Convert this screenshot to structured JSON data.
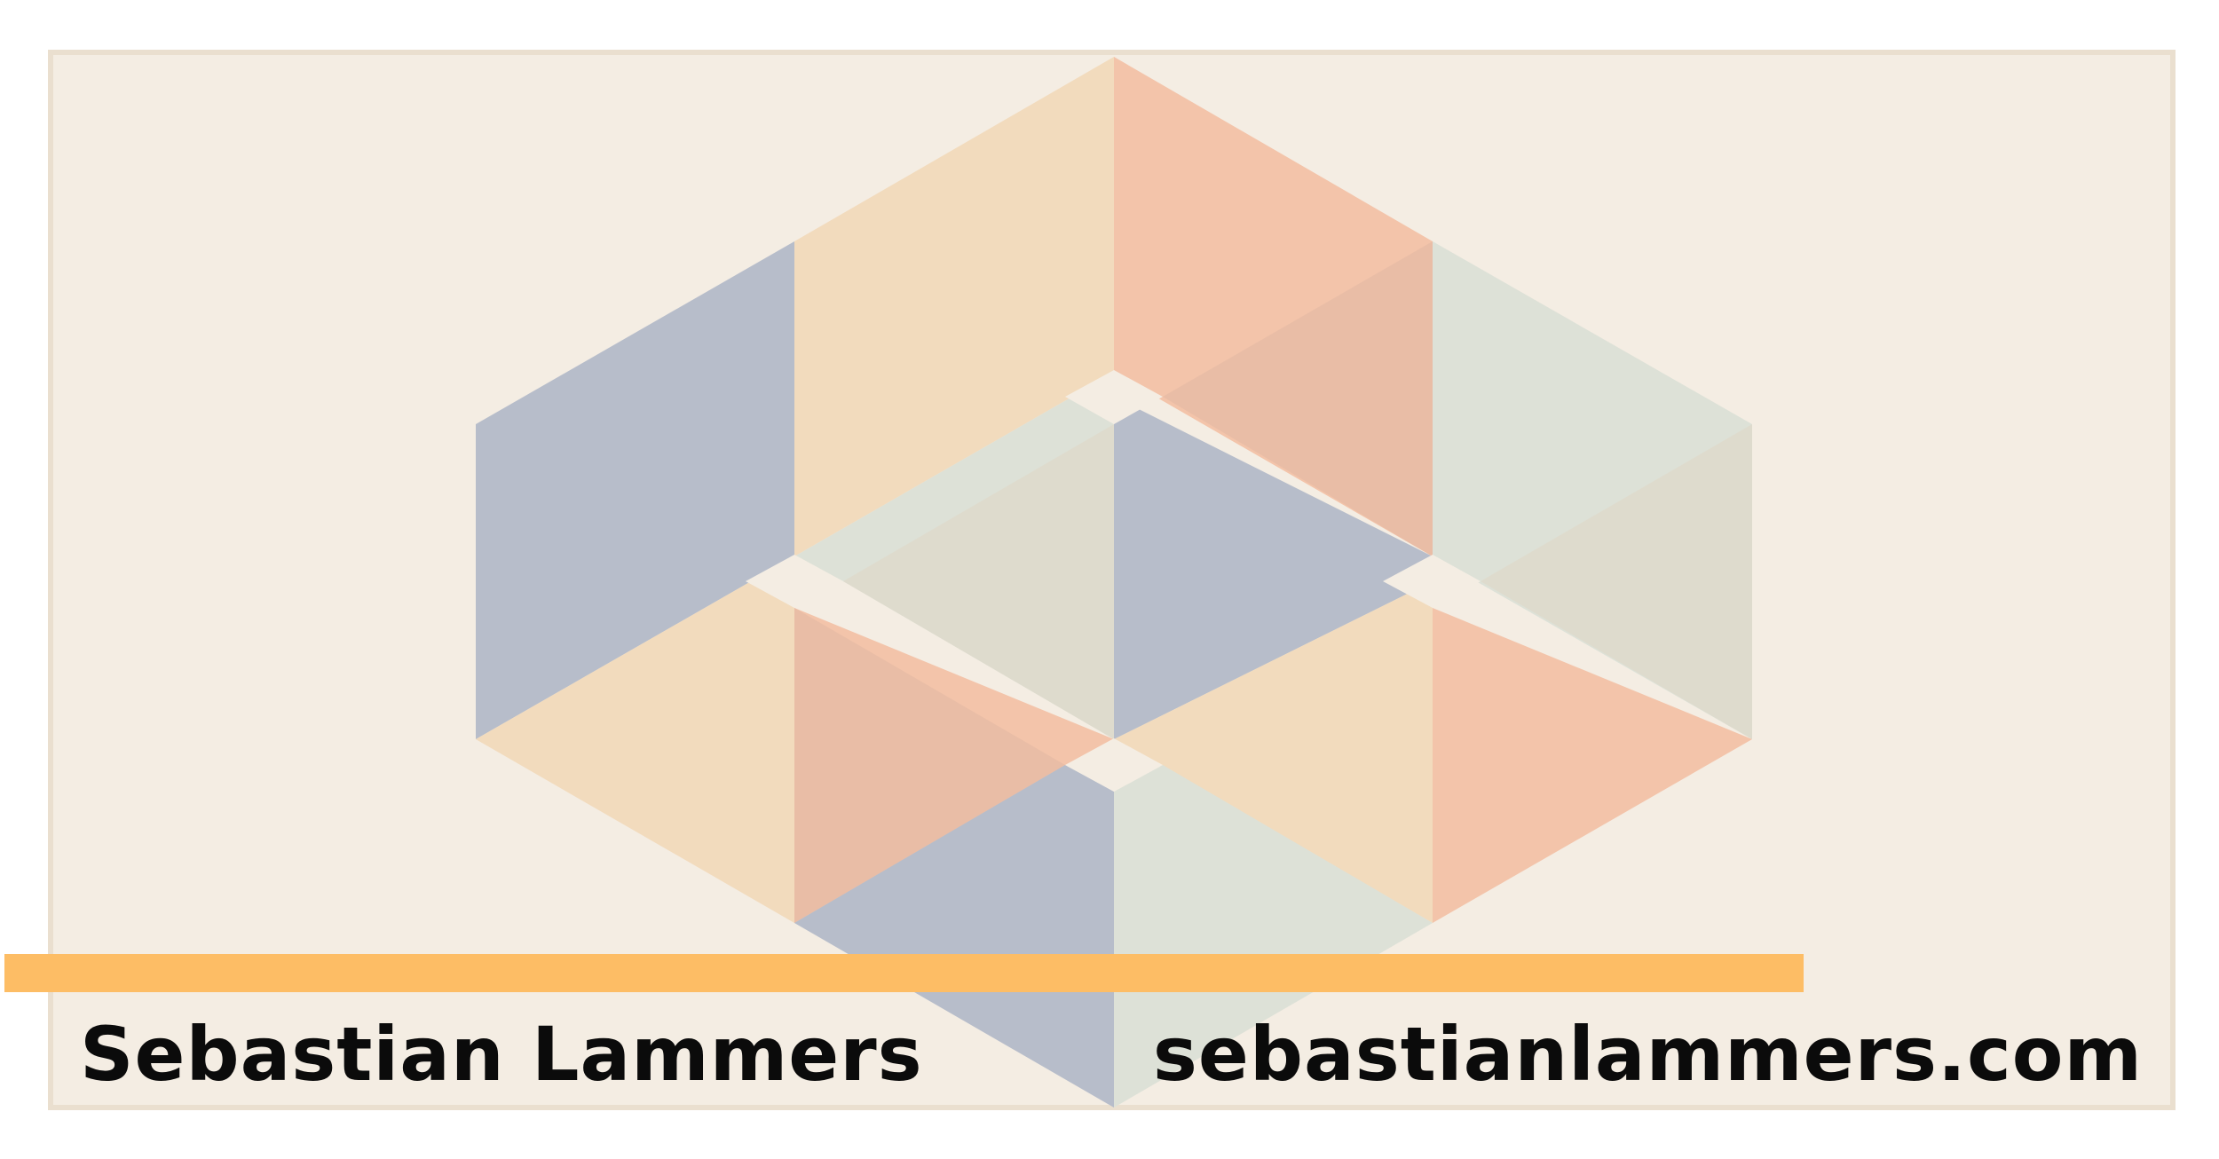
{
  "footer": {
    "name": "Sebastian Lammers",
    "url": "sebastianlammers.com"
  },
  "colors": {
    "background": "#f4ede3",
    "frame": "#eadfcf",
    "accent_bar": "#fdbd65",
    "text": "#0b0b0b",
    "blue": "#b7bdca",
    "sand": "#f2dbbd",
    "peach": "#f3c4aa",
    "sage": "#dde1d7"
  }
}
